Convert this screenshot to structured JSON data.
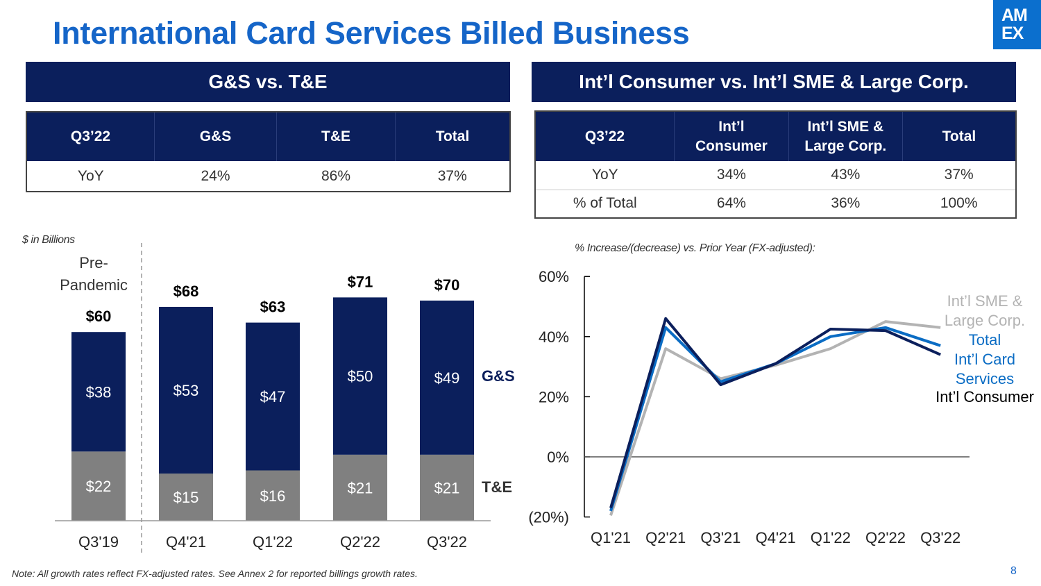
{
  "title": "International Card Services Billed Business",
  "logo_lines": [
    "AM",
    "EX"
  ],
  "left_banner": "G&S vs. T&E",
  "right_banner": "Int’l Consumer vs. Int’l SME & Large Corp.",
  "left_table": {
    "headers": [
      "Q3’22",
      "G&S",
      "T&E",
      "Total"
    ],
    "rows": [
      [
        "YoY",
        "24%",
        "86%",
        "37%"
      ]
    ]
  },
  "right_table": {
    "headers": [
      "Q3’22",
      "Int’l Consumer",
      "Int’l SME & Large Corp.",
      "Total"
    ],
    "rows": [
      [
        "YoY",
        "34%",
        "43%",
        "37%"
      ],
      [
        "% of Total",
        "64%",
        "36%",
        "100%"
      ]
    ]
  },
  "bar_note": "$ in Billions",
  "line_note": "% Increase/(decrease) vs. Prior Year (FX-adjusted):",
  "footnote": "Note: All growth rates reflect FX-adjusted rates. See Annex 2 for reported billings growth rates.",
  "page_number": "8",
  "colors": {
    "navy": "#0b1f5c",
    "gray": "#808080",
    "blue": "#1565c8",
    "mid_blue": "#0a6cc4",
    "light_gray": "#b3b3b3",
    "title_blue": "#1565c8"
  },
  "chart_data": [
    {
      "type": "bar",
      "stacked": true,
      "categories": [
        "Q3'19",
        "Q4'21",
        "Q1'22",
        "Q2'22",
        "Q3'22"
      ],
      "series": [
        {
          "name": "T&E",
          "values": [
            22,
            15,
            16,
            21,
            21
          ],
          "labels": [
            "$22",
            "$15",
            "$16",
            "$21",
            "$21"
          ],
          "color": "#808080"
        },
        {
          "name": "G&S",
          "values": [
            38,
            53,
            47,
            50,
            49
          ],
          "labels": [
            "$38",
            "$53",
            "$47",
            "$50",
            "$49"
          ],
          "color": "#0b1f5c"
        }
      ],
      "totals": [
        "$60",
        "$68",
        "$63",
        "$71",
        "$70"
      ],
      "annotation": [
        "Pre-",
        "Pandemic"
      ],
      "ylim": [
        0,
        80
      ]
    },
    {
      "type": "line",
      "categories": [
        "Q1'21",
        "Q2'21",
        "Q3'21",
        "Q4'21",
        "Q1'22",
        "Q2'22",
        "Q3'22"
      ],
      "yticks": [
        -20,
        0,
        20,
        40,
        60
      ],
      "ytick_labels": [
        "(20%)",
        "0%",
        "20%",
        "40%",
        "60%"
      ],
      "ylim": [
        -20,
        60
      ],
      "series": [
        {
          "name": "Int’l Consumer",
          "label_lines": [
            "Int’l Consumer"
          ],
          "color": "#0b1f5c",
          "values": [
            -17,
            46,
            24,
            31,
            42.5,
            42,
            34
          ]
        },
        {
          "name": "Total Int’l Card Services",
          "label_lines": [
            "Total",
            "Int’l Card",
            "Services"
          ],
          "color": "#0a6cc4",
          "values": [
            -18,
            43,
            25,
            31,
            40,
            43,
            37
          ]
        },
        {
          "name": "Int’l SME & Large Corp.",
          "label_lines": [
            "Int’l SME &",
            "Large Corp."
          ],
          "color": "#b3b3b3",
          "values": [
            -19.5,
            36,
            26,
            30.5,
            36,
            45,
            43
          ]
        }
      ]
    }
  ]
}
